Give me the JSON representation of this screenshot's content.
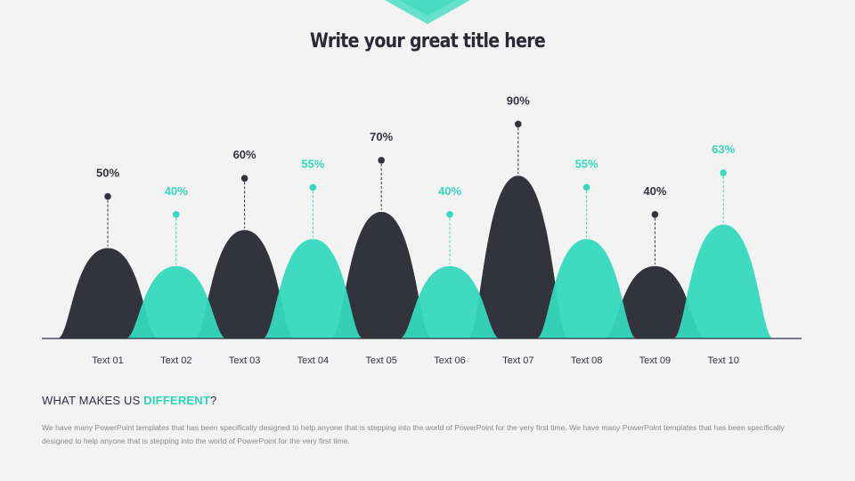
{
  "title": "Write your great title here",
  "colors": {
    "dark": "#33333e",
    "accent": "#35d9bd",
    "background": "#f3f3f3"
  },
  "chart_data": {
    "type": "area",
    "categories": [
      "Text 01",
      "Text 02",
      "Text 03",
      "Text 04",
      "Text 05",
      "Text 06",
      "Text 07",
      "Text 08",
      "Text 09",
      "Text 10"
    ],
    "values": [
      50,
      40,
      60,
      55,
      70,
      40,
      90,
      55,
      40,
      63
    ],
    "value_labels": [
      "50%",
      "40%",
      "60%",
      "55%",
      "70%",
      "40%",
      "90%",
      "55%",
      "40%",
      "63%"
    ],
    "series_colors": [
      "dark",
      "accent",
      "dark",
      "accent",
      "dark",
      "accent",
      "dark",
      "accent",
      "dark",
      "accent"
    ],
    "title": "Write your great title here",
    "xlabel": "",
    "ylabel": "",
    "ylim": [
      0,
      100
    ],
    "grid": false,
    "legend": "none"
  },
  "section": {
    "heading_prefix": "WHAT MAKES US ",
    "heading_highlight": "DIFFERENT",
    "heading_suffix": "?",
    "body": "We have many PowerPoint templates that has been specifically designed to help anyone that is stepping into the world of PowerPoint for the very first time. We have many PowerPoint templates that has been specifically designed to help anyone that is stepping into the world of PowerPoint for the very first time."
  }
}
